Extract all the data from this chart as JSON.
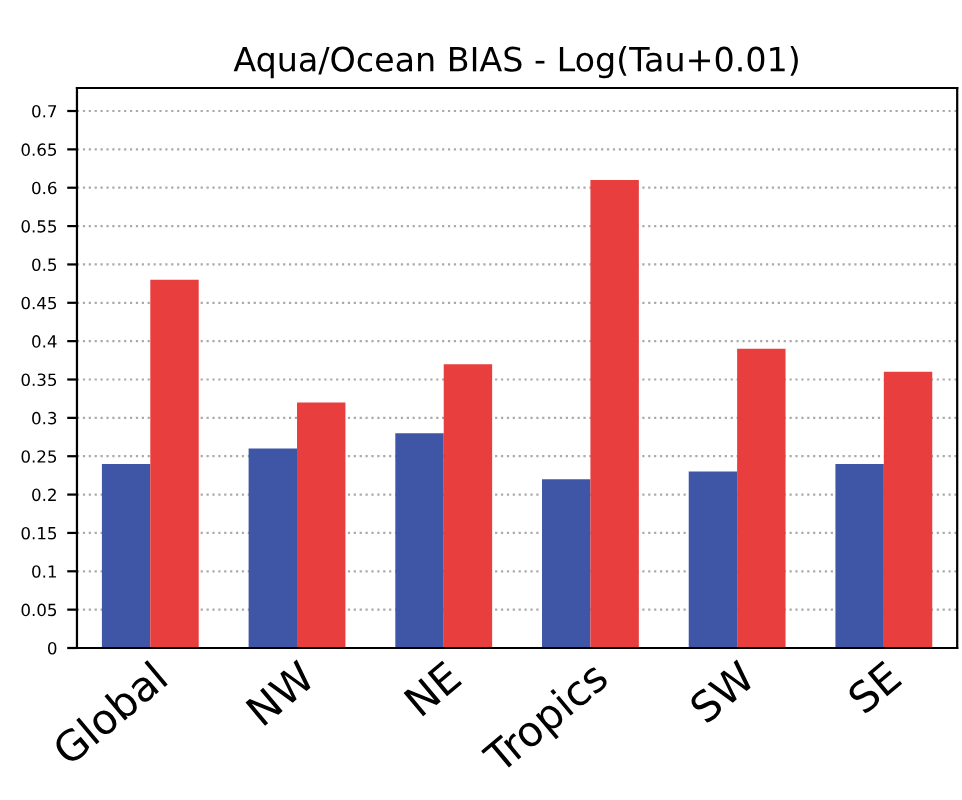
{
  "chart_data": {
    "type": "bar",
    "title": "Aqua/Ocean BIAS - Log(Tau+0.01)",
    "categories": [
      "Global",
      "NW",
      "NE",
      "Tropics",
      "SW",
      "SE"
    ],
    "series": [
      {
        "color": "#3f56a6",
        "values": [
          0.24,
          0.26,
          0.28,
          0.22,
          0.23,
          0.24
        ]
      },
      {
        "color": "#e83e3e",
        "values": [
          0.48,
          0.32,
          0.37,
          0.61,
          0.39,
          0.36
        ]
      }
    ],
    "ylim": [
      0,
      0.73
    ],
    "yticks": [
      0,
      0.05,
      0.1,
      0.15,
      0.2,
      0.25,
      0.3,
      0.35,
      0.4,
      0.45,
      0.5,
      0.55,
      0.6,
      0.65,
      0.7
    ],
    "grid": "y",
    "line_style": "dotted"
  }
}
